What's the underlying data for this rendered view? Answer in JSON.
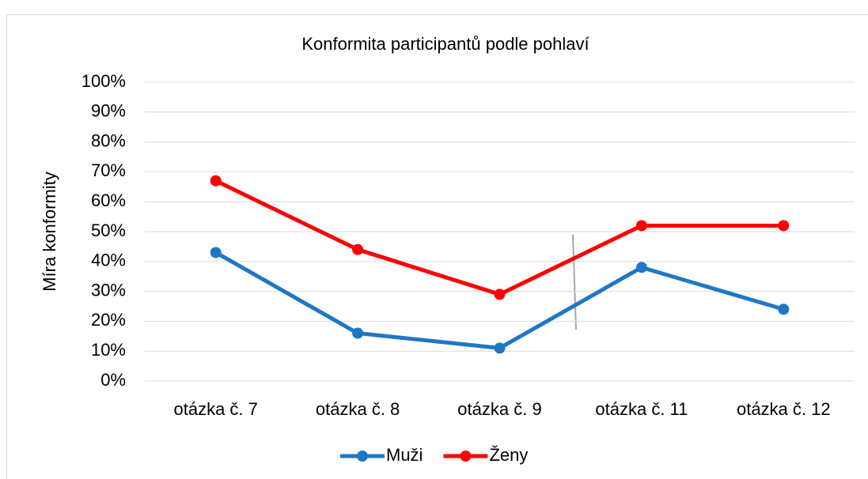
{
  "chart_data": {
    "type": "line",
    "title": "Konformita participantů podle pohlaví",
    "y_label": "Míra konformity",
    "categories": [
      "otázka č. 7",
      "otázka č. 8",
      "otázka č. 9",
      "otázka č. 11",
      "otázka č. 12"
    ],
    "series": [
      {
        "name": "Muži",
        "color": "#1f77c4",
        "values": [
          43,
          16,
          11,
          38,
          24
        ]
      },
      {
        "name": "Ženy",
        "color": "#ff0000",
        "values": [
          67,
          44,
          29,
          52,
          52
        ]
      }
    ],
    "ylim": [
      0,
      100
    ],
    "yticks": [
      {
        "value": 0,
        "label": "0%"
      },
      {
        "value": 10,
        "label": "10%"
      },
      {
        "value": 20,
        "label": "20%"
      },
      {
        "value": 30,
        "label": "30%"
      },
      {
        "value": 40,
        "label": "40%"
      },
      {
        "value": 50,
        "label": "50%"
      },
      {
        "value": 60,
        "label": "60%"
      },
      {
        "value": 70,
        "label": "70%"
      },
      {
        "value": 80,
        "label": "80%"
      },
      {
        "value": 90,
        "label": "90%"
      },
      {
        "value": 100,
        "label": "100%"
      }
    ],
    "grid": true,
    "legend": "bottom"
  }
}
